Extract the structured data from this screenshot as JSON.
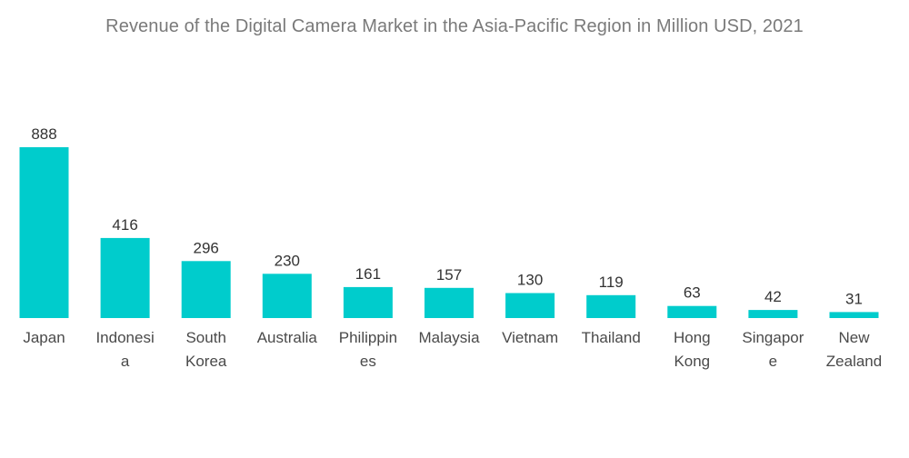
{
  "chart_data": {
    "type": "bar",
    "title": "Revenue of the Digital Camera Market in the Asia-Pacific Region in Million USD, 2021",
    "xlabel": "",
    "ylabel": "",
    "categories": [
      [
        "Japan"
      ],
      [
        "Indonesi",
        "a"
      ],
      [
        "South",
        "Korea"
      ],
      [
        "Australia"
      ],
      [
        "Philippin",
        "es"
      ],
      [
        "Malaysia"
      ],
      [
        "Vietnam"
      ],
      [
        "Thailand"
      ],
      [
        "Hong",
        "Kong"
      ],
      [
        "Singapor",
        "e"
      ],
      [
        "New",
        "Zealand"
      ]
    ],
    "values": [
      888,
      416,
      296,
      230,
      161,
      157,
      130,
      119,
      63,
      42,
      31
    ],
    "value_labels": [
      "888",
      "416",
      "296",
      "230",
      "161",
      "157",
      "130",
      "119",
      "63",
      "42",
      "31"
    ],
    "ylim": [
      0,
      888
    ],
    "grid": false,
    "legend": "none",
    "bar_color": "#00cccc"
  }
}
